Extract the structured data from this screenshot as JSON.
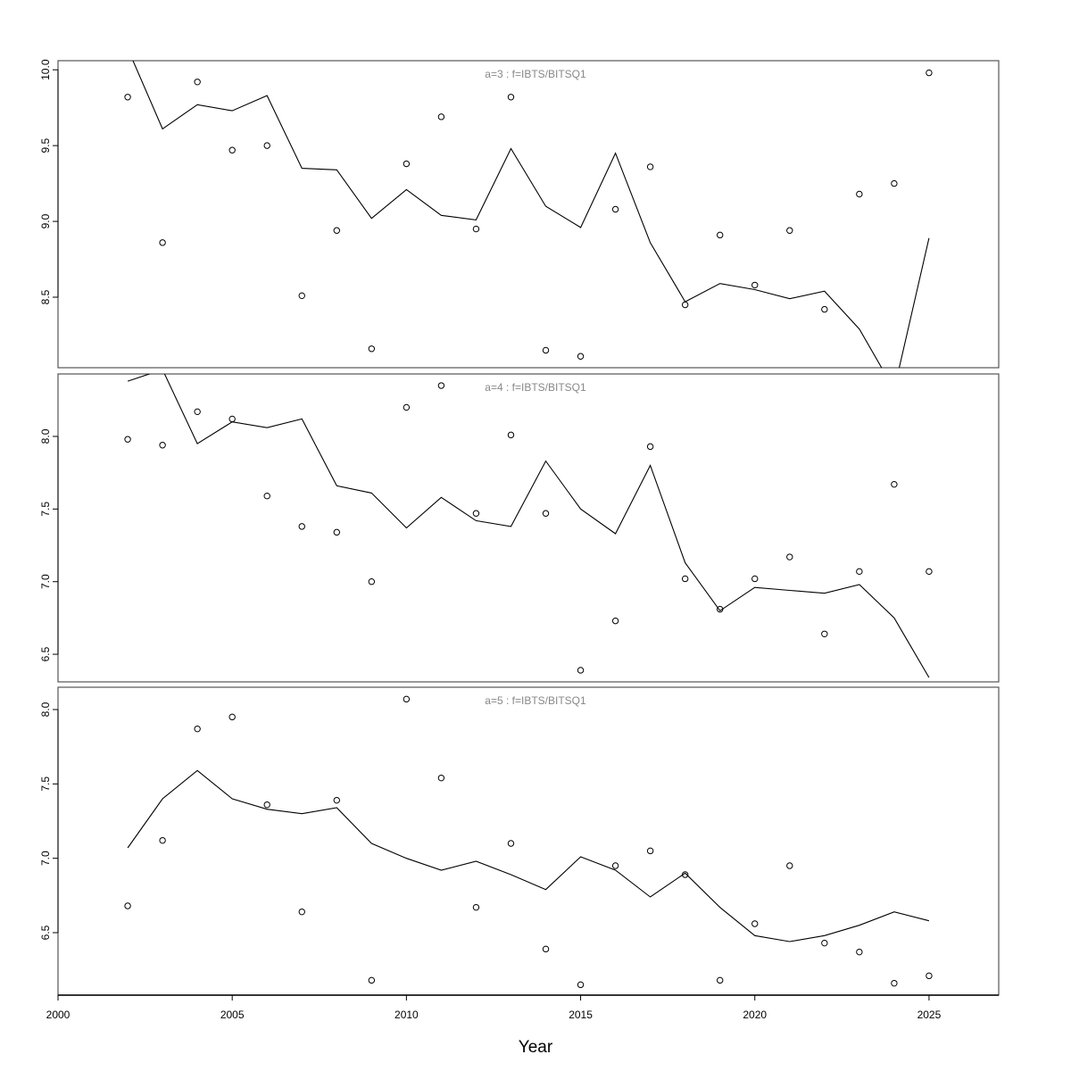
{
  "chart_data": {
    "type": "line",
    "xlabel": "Year",
    "xlim": [
      2000,
      2027
    ],
    "xticks": [
      2000,
      2005,
      2010,
      2015,
      2020,
      2025
    ],
    "grid": false,
    "line_color": "#000000",
    "frame_color": "#555555",
    "x": [
      2002,
      2003,
      2004,
      2005,
      2006,
      2007,
      2008,
      2009,
      2010,
      2011,
      2012,
      2013,
      2014,
      2015,
      2016,
      2017,
      2018,
      2019,
      2020,
      2021,
      2022,
      2023,
      2024,
      2025
    ],
    "panels": [
      {
        "title": "a=3  :  f=IBTS/BITSQ1",
        "ylim": [
          8.035,
          10.06
        ],
        "yticks": [
          "8.5",
          "9.0",
          "9.5",
          "10.0"
        ],
        "observed_points": [
          9.82,
          8.86,
          9.92,
          9.47,
          9.5,
          8.51,
          8.94,
          8.16,
          9.38,
          9.69,
          8.95,
          9.82,
          8.15,
          8.11,
          9.08,
          9.36,
          8.45,
          8.91,
          8.58,
          8.94,
          8.42,
          9.18,
          9.25,
          9.98
        ],
        "fitted_line": [
          10.14,
          9.61,
          9.77,
          9.73,
          9.83,
          9.35,
          9.34,
          9.02,
          9.21,
          9.04,
          9.01,
          9.48,
          9.1,
          8.96,
          9.45,
          8.86,
          8.47,
          8.59,
          8.55,
          8.49,
          8.54,
          8.29,
          7.89,
          8.89
        ]
      },
      {
        "title": "a=4  :  f=IBTS/BITSQ1",
        "ylim": [
          6.31,
          8.43
        ],
        "yticks": [
          "6.5",
          "7.0",
          "7.5",
          "8.0"
        ],
        "observed_points": [
          7.98,
          7.94,
          8.17,
          8.12,
          7.59,
          7.38,
          7.34,
          7.0,
          8.2,
          8.35,
          7.47,
          8.01,
          7.47,
          6.39,
          6.73,
          7.93,
          7.02,
          6.81,
          7.02,
          7.17,
          6.64,
          7.07,
          7.67,
          7.07
        ],
        "fitted_line": [
          8.38,
          8.46,
          7.95,
          8.1,
          8.06,
          8.12,
          7.66,
          7.61,
          7.37,
          7.58,
          7.42,
          7.38,
          7.83,
          7.5,
          7.33,
          7.8,
          7.13,
          6.8,
          6.96,
          6.94,
          6.92,
          6.98,
          6.75,
          6.34
        ]
      },
      {
        "title": "a=5  :  f=IBTS/BITSQ1",
        "ylim": [
          6.08,
          8.15
        ],
        "yticks": [
          "6.5",
          "7.0",
          "7.5",
          "8.0"
        ],
        "observed_points": [
          6.68,
          7.12,
          7.87,
          7.95,
          7.36,
          6.64,
          7.39,
          6.18,
          8.07,
          7.54,
          6.67,
          7.1,
          6.39,
          6.15,
          6.95,
          7.05,
          6.89,
          6.18,
          6.56,
          6.95,
          6.43,
          6.37,
          6.16,
          6.21
        ],
        "fitted_line": [
          7.07,
          7.4,
          7.59,
          7.4,
          7.33,
          7.3,
          7.34,
          7.1,
          7.0,
          6.92,
          6.98,
          6.89,
          6.79,
          7.01,
          6.92,
          6.74,
          6.9,
          6.67,
          6.48,
          6.44,
          6.48,
          6.55,
          6.64,
          6.58
        ]
      }
    ]
  }
}
